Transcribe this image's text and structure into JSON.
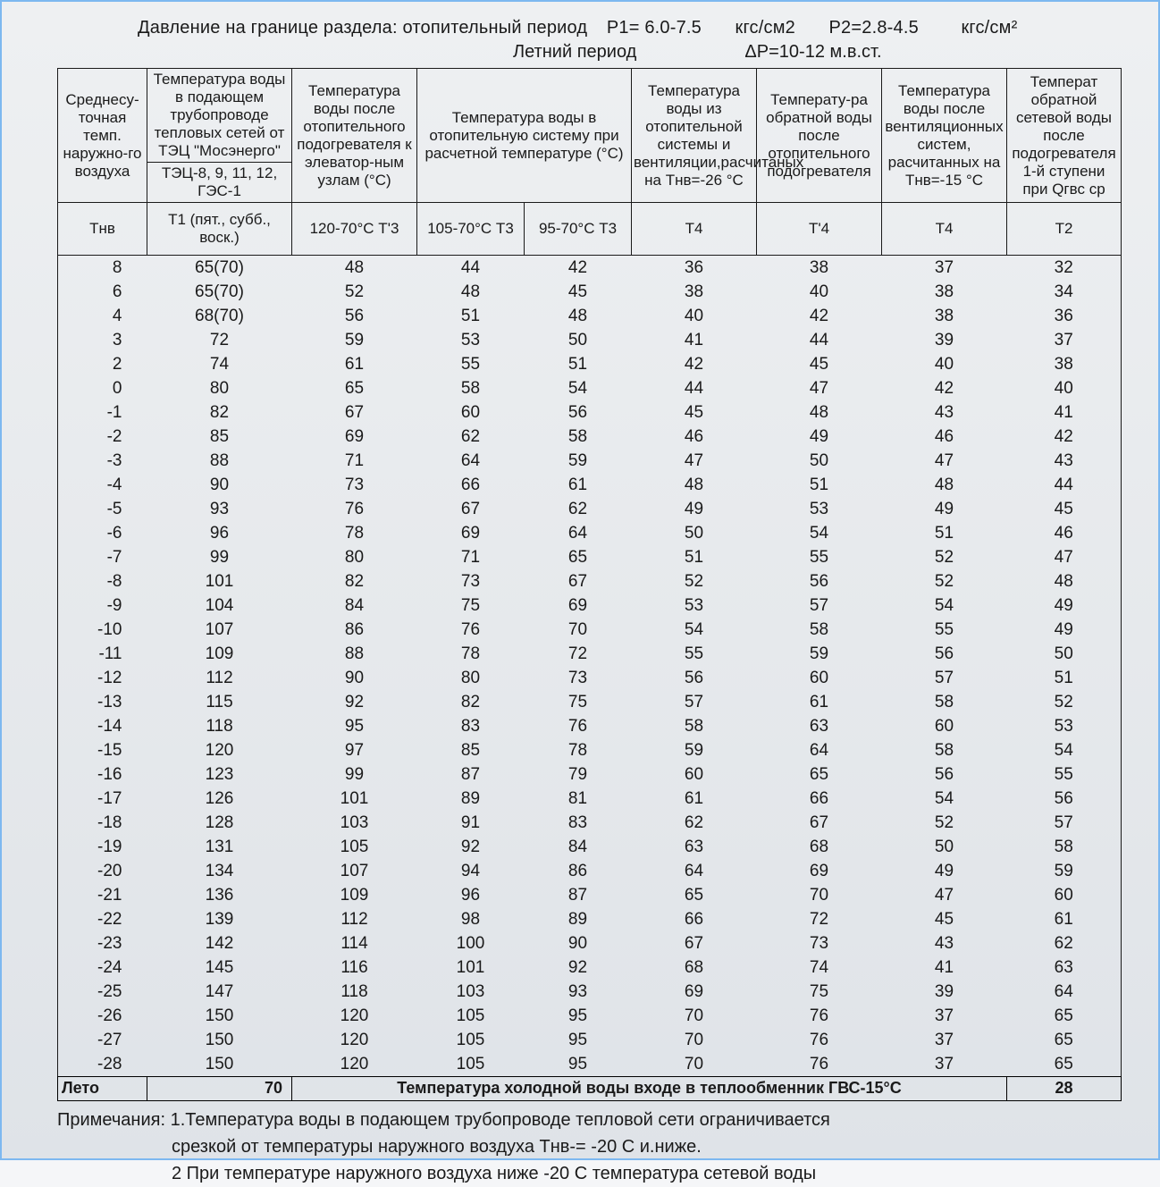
{
  "header": {
    "line1_a": "Давление на границе раздела: отопительный период",
    "line1_p1": "P1= 6.0-7.5",
    "line1_u1": "кгс/см2",
    "line1_p2": "P2=2.8-4.5",
    "line1_u2": "кгс/см²",
    "line2_a": "Летний период",
    "line2_b": "ΔP=10-12 м.в.ст."
  },
  "columns": {
    "c0_top": "Среднесу-точная темп. наружно-го воздуха",
    "c1_top": "Температура воды в подающем трубопроводе тепловых сетей от ТЭЦ \"Мосэнерго\"",
    "c1_sub": "ТЭЦ-8, 9, 11, 12, ГЭС-1",
    "c2_top": "Температура воды после отопительного подогревателя к элеватор-ным узлам (°C)",
    "c34_top": "Температура воды в отопительную систему при расчетной температуре (°C)",
    "c5_top": "Температура воды из отопительной системы и вентиляции,расчитаных на Тнв=-26 °C",
    "c6_top": "Температу-ра обратной воды после отопительного подогревателя",
    "c7_top": "Температура воды после вентиляционных систем, расчитанных на Тнв=-15 °C",
    "c8_top": "Температ обратной сетевой воды после подогревателя 1-й ступени при Qгвс ср",
    "r2_c0": "Тнв",
    "r2_c1": "Т1 (пят., субб., воск.)",
    "r2_c2": "120-70°C Т'3",
    "r2_c3": "105-70°C Т3",
    "r2_c4": "95-70°C Т3",
    "r2_c5": "Т4",
    "r2_c6": "Т'4",
    "r2_c7": "Т4",
    "r2_c8": "Т2"
  },
  "rows": [
    [
      "8",
      "65(70)",
      "48",
      "44",
      "42",
      "36",
      "38",
      "37",
      "32"
    ],
    [
      "6",
      "65(70)",
      "52",
      "48",
      "45",
      "38",
      "40",
      "38",
      "34"
    ],
    [
      "4",
      "68(70)",
      "56",
      "51",
      "48",
      "40",
      "42",
      "38",
      "36"
    ],
    [
      "3",
      "72",
      "59",
      "53",
      "50",
      "41",
      "44",
      "39",
      "37"
    ],
    [
      "2",
      "74",
      "61",
      "55",
      "51",
      "42",
      "45",
      "40",
      "38"
    ],
    [
      "0",
      "80",
      "65",
      "58",
      "54",
      "44",
      "47",
      "42",
      "40"
    ],
    [
      "-1",
      "82",
      "67",
      "60",
      "56",
      "45",
      "48",
      "43",
      "41"
    ],
    [
      "-2",
      "85",
      "69",
      "62",
      "58",
      "46",
      "49",
      "46",
      "42"
    ],
    [
      "-3",
      "88",
      "71",
      "64",
      "59",
      "47",
      "50",
      "47",
      "43"
    ],
    [
      "-4",
      "90",
      "73",
      "66",
      "61",
      "48",
      "51",
      "48",
      "44"
    ],
    [
      "-5",
      "93",
      "76",
      "67",
      "62",
      "49",
      "53",
      "49",
      "45"
    ],
    [
      "-6",
      "96",
      "78",
      "69",
      "64",
      "50",
      "54",
      "51",
      "46"
    ],
    [
      "-7",
      "99",
      "80",
      "71",
      "65",
      "51",
      "55",
      "52",
      "47"
    ],
    [
      "-8",
      "101",
      "82",
      "73",
      "67",
      "52",
      "56",
      "52",
      "48"
    ],
    [
      "-9",
      "104",
      "84",
      "75",
      "69",
      "53",
      "57",
      "54",
      "49"
    ],
    [
      "-10",
      "107",
      "86",
      "76",
      "70",
      "54",
      "58",
      "55",
      "49"
    ],
    [
      "-11",
      "109",
      "88",
      "78",
      "72",
      "55",
      "59",
      "56",
      "50"
    ],
    [
      "-12",
      "112",
      "90",
      "80",
      "73",
      "56",
      "60",
      "57",
      "51"
    ],
    [
      "-13",
      "115",
      "92",
      "82",
      "75",
      "57",
      "61",
      "58",
      "52"
    ],
    [
      "-14",
      "118",
      "95",
      "83",
      "76",
      "58",
      "63",
      "60",
      "53"
    ],
    [
      "-15",
      "120",
      "97",
      "85",
      "78",
      "59",
      "64",
      "58",
      "54"
    ],
    [
      "-16",
      "123",
      "99",
      "87",
      "79",
      "60",
      "65",
      "56",
      "55"
    ],
    [
      "-17",
      "126",
      "101",
      "89",
      "81",
      "61",
      "66",
      "54",
      "56"
    ],
    [
      "-18",
      "128",
      "103",
      "91",
      "83",
      "62",
      "67",
      "52",
      "57"
    ],
    [
      "-19",
      "131",
      "105",
      "92",
      "84",
      "63",
      "68",
      "50",
      "58"
    ],
    [
      "-20",
      "134",
      "107",
      "94",
      "86",
      "64",
      "69",
      "49",
      "59"
    ],
    [
      "-21",
      "136",
      "109",
      "96",
      "87",
      "65",
      "70",
      "47",
      "60"
    ],
    [
      "-22",
      "139",
      "112",
      "98",
      "89",
      "66",
      "72",
      "45",
      "61"
    ],
    [
      "-23",
      "142",
      "114",
      "100",
      "90",
      "67",
      "73",
      "43",
      "62"
    ],
    [
      "-24",
      "145",
      "116",
      "101",
      "92",
      "68",
      "74",
      "41",
      "63"
    ],
    [
      "-25",
      "147",
      "118",
      "103",
      "93",
      "69",
      "75",
      "39",
      "64"
    ],
    [
      "-26",
      "150",
      "120",
      "105",
      "95",
      "70",
      "76",
      "37",
      "65"
    ],
    [
      "-27",
      "150",
      "120",
      "105",
      "95",
      "70",
      "76",
      "37",
      "65"
    ],
    [
      "-28",
      "150",
      "120",
      "105",
      "95",
      "70",
      "76",
      "37",
      "65"
    ]
  ],
  "summer": {
    "label": "Лето",
    "val1": "70",
    "mid": "Температура холодной воды входе в теплообменник ГВС-15°С",
    "val2": "28"
  },
  "notes": {
    "l1": "Примечания: 1.Температура воды в подающем трубопроводе тепловой сети ограничивается",
    "l2": "срезкой от температуры наружного воздуха Тнв-= -20 С и.ниже.",
    "l3": "2 При температуре наружного воздуха ниже -20 С температура сетевой воды"
  },
  "style": {
    "border_color": "#1a1a1a",
    "frame_border": "#7db8f0",
    "bg_top": "#eef0f2",
    "bg_bottom": "#dfe3e8",
    "font_size_data": 19,
    "font_size_header": 17
  }
}
